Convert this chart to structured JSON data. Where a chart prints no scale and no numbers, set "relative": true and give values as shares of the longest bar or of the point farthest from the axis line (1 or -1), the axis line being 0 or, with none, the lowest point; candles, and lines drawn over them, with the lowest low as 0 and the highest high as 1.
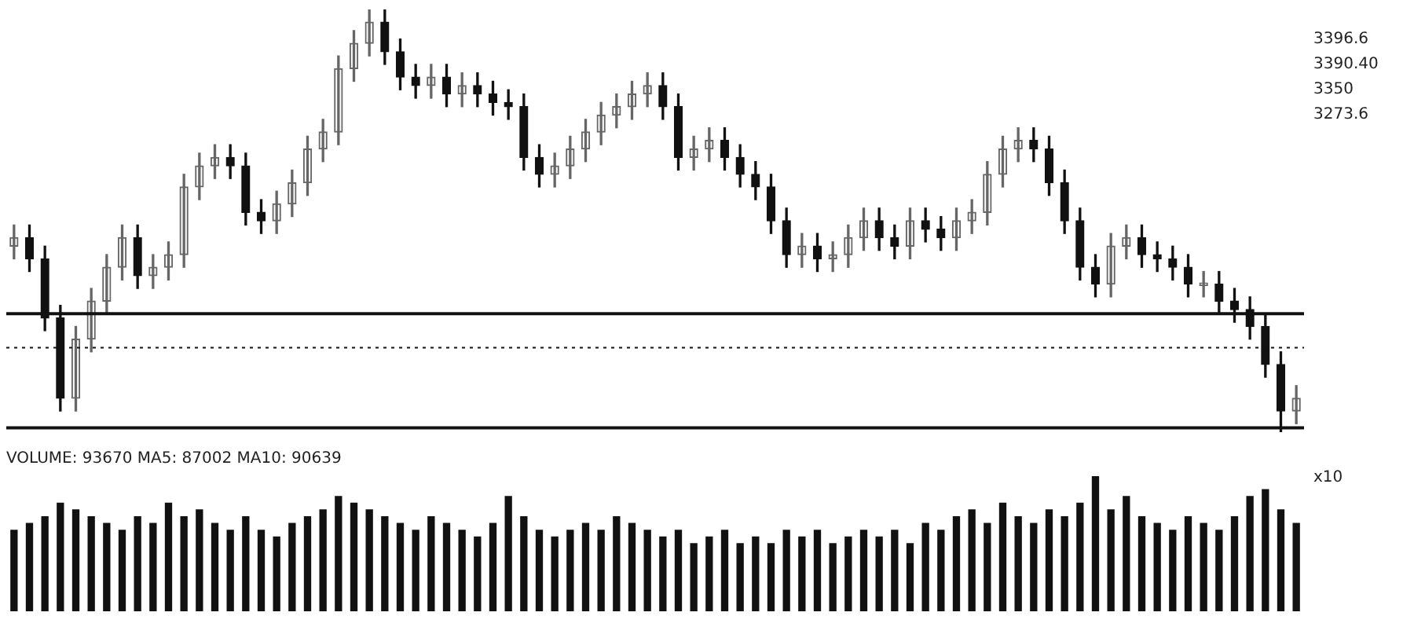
{
  "chart_data": [
    {
      "type": "candlestick",
      "relative": true,
      "colors": [
        "#666666",
        "#111111",
        "#111111",
        "#111111",
        "#666666",
        "#666666",
        "#666666",
        "#666666",
        "#111111",
        "#666666",
        "#666666",
        "#666666",
        "#666666",
        "#666666",
        "#111111",
        "#111111",
        "#111111",
        "#666666",
        "#666666",
        "#666666",
        "#666666",
        "#666666",
        "#666666",
        "#666666",
        "#111111",
        "#111111",
        "#111111",
        "#666666",
        "#111111",
        "#666666",
        "#111111",
        "#111111",
        "#111111",
        "#111111",
        "#111111",
        "#666666",
        "#666666",
        "#666666",
        "#666666",
        "#666666",
        "#666666",
        "#666666",
        "#111111",
        "#111111",
        "#666666",
        "#666666",
        "#111111",
        "#111111",
        "#111111",
        "#111111",
        "#111111",
        "#666666",
        "#111111",
        "#666666",
        "#666666",
        "#666666",
        "#111111",
        "#111111",
        "#666666",
        "#111111",
        "#111111",
        "#666666",
        "#666666",
        "#666666",
        "#666666",
        "#666666",
        "#111111",
        "#111111",
        "#111111",
        "#111111",
        "#111111",
        "#666666",
        "#666666",
        "#111111",
        "#111111",
        "#111111",
        "#111111",
        "#666666",
        "#111111",
        "#111111",
        "#111111",
        "#111111",
        "#111111",
        "#666666"
      ],
      "categories": [
        null,
        null,
        null,
        null,
        null,
        null,
        null,
        null,
        null,
        null,
        null,
        null,
        null,
        null,
        null,
        null,
        null,
        null,
        null,
        null,
        null,
        null,
        null,
        null,
        null,
        null,
        null,
        null,
        null,
        null,
        null,
        null,
        null,
        null,
        null,
        null,
        null,
        null,
        null,
        null,
        null,
        null,
        null,
        null,
        null,
        null,
        null,
        null,
        null,
        null,
        null,
        null,
        null,
        null,
        null,
        null,
        null,
        null,
        null,
        null,
        null,
        null,
        null,
        null,
        null,
        null,
        null,
        null,
        null,
        null,
        null,
        null,
        null,
        null,
        null,
        null,
        null,
        null,
        null,
        null,
        null,
        null,
        null,
        null
      ],
      "ohlc": [
        [
          0.44,
          0.49,
          0.41,
          0.46
        ],
        [
          0.46,
          0.49,
          0.38,
          0.41
        ],
        [
          0.41,
          0.44,
          0.24,
          0.27
        ],
        [
          0.27,
          0.3,
          0.05,
          0.08
        ],
        [
          0.08,
          0.25,
          0.05,
          0.22
        ],
        [
          0.22,
          0.34,
          0.19,
          0.31
        ],
        [
          0.31,
          0.42,
          0.28,
          0.39
        ],
        [
          0.39,
          0.49,
          0.36,
          0.46
        ],
        [
          0.46,
          0.49,
          0.34,
          0.37
        ],
        [
          0.37,
          0.42,
          0.34,
          0.39
        ],
        [
          0.39,
          0.45,
          0.36,
          0.42
        ],
        [
          0.42,
          0.61,
          0.39,
          0.58
        ],
        [
          0.58,
          0.66,
          0.55,
          0.63
        ],
        [
          0.63,
          0.68,
          0.6,
          0.65
        ],
        [
          0.65,
          0.68,
          0.6,
          0.63
        ],
        [
          0.63,
          0.66,
          0.49,
          0.52
        ],
        [
          0.52,
          0.55,
          0.47,
          0.5
        ],
        [
          0.5,
          0.57,
          0.47,
          0.54
        ],
        [
          0.54,
          0.62,
          0.51,
          0.59
        ],
        [
          0.59,
          0.7,
          0.56,
          0.67
        ],
        [
          0.67,
          0.74,
          0.64,
          0.71
        ],
        [
          0.71,
          0.89,
          0.68,
          0.86
        ],
        [
          0.86,
          0.95,
          0.83,
          0.92
        ],
        [
          0.92,
          1.0,
          0.89,
          0.97
        ],
        [
          0.97,
          1.0,
          0.87,
          0.9
        ],
        [
          0.9,
          0.93,
          0.81,
          0.84
        ],
        [
          0.84,
          0.87,
          0.79,
          0.82
        ],
        [
          0.82,
          0.87,
          0.79,
          0.84
        ],
        [
          0.84,
          0.87,
          0.77,
          0.8
        ],
        [
          0.8,
          0.85,
          0.77,
          0.82
        ],
        [
          0.82,
          0.85,
          0.77,
          0.8
        ],
        [
          0.8,
          0.83,
          0.75,
          0.78
        ],
        [
          0.78,
          0.81,
          0.74,
          0.77
        ],
        [
          0.77,
          0.8,
          0.62,
          0.65
        ],
        [
          0.65,
          0.68,
          0.58,
          0.61
        ],
        [
          0.61,
          0.66,
          0.58,
          0.63
        ],
        [
          0.63,
          0.7,
          0.6,
          0.67
        ],
        [
          0.67,
          0.74,
          0.64,
          0.71
        ],
        [
          0.71,
          0.78,
          0.68,
          0.75
        ],
        [
          0.75,
          0.8,
          0.72,
          0.77
        ],
        [
          0.77,
          0.83,
          0.74,
          0.8
        ],
        [
          0.8,
          0.85,
          0.77,
          0.82
        ],
        [
          0.82,
          0.85,
          0.74,
          0.77
        ],
        [
          0.77,
          0.8,
          0.62,
          0.65
        ],
        [
          0.65,
          0.7,
          0.62,
          0.67
        ],
        [
          0.67,
          0.72,
          0.64,
          0.69
        ],
        [
          0.69,
          0.72,
          0.62,
          0.65
        ],
        [
          0.65,
          0.68,
          0.58,
          0.61
        ],
        [
          0.61,
          0.64,
          0.55,
          0.58
        ],
        [
          0.58,
          0.61,
          0.47,
          0.5
        ],
        [
          0.5,
          0.53,
          0.39,
          0.42
        ],
        [
          0.42,
          0.47,
          0.39,
          0.44
        ],
        [
          0.44,
          0.47,
          0.38,
          0.41
        ],
        [
          0.41,
          0.45,
          0.38,
          0.42
        ],
        [
          0.42,
          0.49,
          0.39,
          0.46
        ],
        [
          0.46,
          0.53,
          0.43,
          0.5
        ],
        [
          0.5,
          0.53,
          0.43,
          0.46
        ],
        [
          0.46,
          0.49,
          0.41,
          0.44
        ],
        [
          0.44,
          0.53,
          0.41,
          0.5
        ],
        [
          0.5,
          0.53,
          0.45,
          0.48
        ],
        [
          0.48,
          0.51,
          0.43,
          0.46
        ],
        [
          0.46,
          0.53,
          0.43,
          0.5
        ],
        [
          0.5,
          0.55,
          0.47,
          0.52
        ],
        [
          0.52,
          0.64,
          0.49,
          0.61
        ],
        [
          0.61,
          0.7,
          0.58,
          0.67
        ],
        [
          0.67,
          0.72,
          0.64,
          0.69
        ],
        [
          0.69,
          0.72,
          0.64,
          0.67
        ],
        [
          0.67,
          0.7,
          0.56,
          0.59
        ],
        [
          0.59,
          0.62,
          0.47,
          0.5
        ],
        [
          0.5,
          0.53,
          0.36,
          0.39
        ],
        [
          0.39,
          0.42,
          0.32,
          0.35
        ],
        [
          0.35,
          0.47,
          0.32,
          0.44
        ],
        [
          0.44,
          0.49,
          0.41,
          0.46
        ],
        [
          0.46,
          0.49,
          0.39,
          0.42
        ],
        [
          0.42,
          0.45,
          0.38,
          0.41
        ],
        [
          0.41,
          0.44,
          0.36,
          0.39
        ],
        [
          0.39,
          0.42,
          0.32,
          0.35
        ],
        [
          0.35,
          0.38,
          0.32,
          0.35
        ],
        [
          0.35,
          0.38,
          0.28,
          0.31
        ],
        [
          0.31,
          0.34,
          0.26,
          0.29
        ],
        [
          0.29,
          0.32,
          0.22,
          0.25
        ],
        [
          0.25,
          0.28,
          0.13,
          0.16
        ],
        [
          0.16,
          0.19,
          0.0,
          0.05
        ],
        [
          0.05,
          0.11,
          0.02,
          0.08
        ]
      ],
      "ref_lines": [
        {
          "axis": "y",
          "value": 0.2,
          "line_style": "dotted"
        },
        {
          "axis": "y",
          "value": 0.28,
          "line_style": "solid"
        },
        {
          "axis": "y",
          "value": 0.01,
          "line_style": "solid"
        }
      ],
      "annotations": [
        "3396.6",
        "3390.40",
        "3350",
        "3273.6"
      ]
    },
    {
      "type": "bar",
      "relative": true,
      "color": "#111111",
      "categories": [
        null,
        null,
        null,
        null,
        null,
        null,
        null,
        null,
        null,
        null,
        null,
        null,
        null,
        null,
        null,
        null,
        null,
        null,
        null,
        null,
        null,
        null,
        null,
        null,
        null,
        null,
        null,
        null,
        null,
        null,
        null,
        null,
        null,
        null,
        null,
        null,
        null,
        null,
        null,
        null,
        null,
        null,
        null,
        null,
        null,
        null,
        null,
        null,
        null,
        null,
        null,
        null,
        null,
        null,
        null,
        null,
        null,
        null,
        null,
        null,
        null,
        null,
        null,
        null,
        null,
        null,
        null,
        null,
        null,
        null,
        null,
        null,
        null,
        null,
        null,
        null,
        null,
        null,
        null,
        null,
        null,
        null,
        null,
        null
      ],
      "values": [
        0.6,
        0.65,
        0.7,
        0.8,
        0.75,
        0.7,
        0.65,
        0.6,
        0.7,
        0.65,
        0.8,
        0.7,
        0.75,
        0.65,
        0.6,
        0.7,
        0.6,
        0.55,
        0.65,
        0.7,
        0.75,
        0.85,
        0.8,
        0.75,
        0.7,
        0.65,
        0.6,
        0.7,
        0.65,
        0.6,
        0.55,
        0.65,
        0.85,
        0.7,
        0.6,
        0.55,
        0.6,
        0.65,
        0.6,
        0.7,
        0.65,
        0.6,
        0.55,
        0.6,
        0.5,
        0.55,
        0.6,
        0.5,
        0.55,
        0.5,
        0.6,
        0.55,
        0.6,
        0.5,
        0.55,
        0.6,
        0.55,
        0.6,
        0.5,
        0.65,
        0.6,
        0.7,
        0.75,
        0.65,
        0.8,
        0.7,
        0.65,
        0.75,
        0.7,
        0.8,
        1.0,
        0.75,
        0.85,
        0.7,
        0.65,
        0.6,
        0.7,
        0.65,
        0.6,
        0.7,
        0.85,
        0.9,
        0.75,
        0.65
      ],
      "annotations": [
        "VOLUME: 93670 MA5: 87002 MA10: 90639",
        "x10"
      ]
    }
  ]
}
